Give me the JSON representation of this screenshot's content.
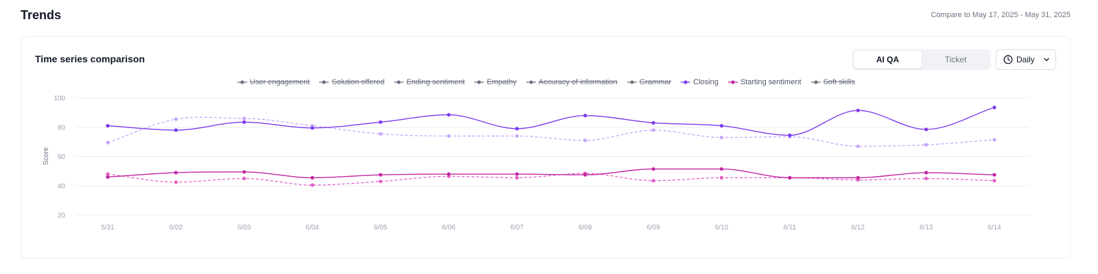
{
  "header": {
    "title": "Trends",
    "compare_text": "Compare to May 17, 2025 - May 31, 2025"
  },
  "card": {
    "title": "Time series comparison",
    "toggle": {
      "options": [
        "AI QA",
        "Ticket"
      ],
      "selected": "AI QA"
    },
    "period": {
      "label": "Daily",
      "icon": "clock-icon"
    }
  },
  "colors": {
    "closing": "#7c3aed",
    "closing_compare": "#c4a5fb",
    "starting": "#c026a3",
    "starting_compare": "#e45fc6",
    "disabled": "#6b7280",
    "grid": "#eceef1"
  },
  "chart_data": {
    "type": "line",
    "ylabel": "Score",
    "xlabel": "",
    "ylim": [
      20,
      100
    ],
    "yticks": [
      20,
      40,
      60,
      80,
      100
    ],
    "grid": true,
    "legend_placement": "top-center",
    "categories": [
      "5/31",
      "6/02",
      "6/03",
      "6/04",
      "6/05",
      "6/06",
      "6/07",
      "6/08",
      "6/09",
      "6/10",
      "6/11",
      "6/12",
      "6/13",
      "6/14"
    ],
    "legend": [
      {
        "name": "User engagement",
        "enabled": false
      },
      {
        "name": "Solution offered",
        "enabled": false
      },
      {
        "name": "Ending sentiment",
        "enabled": false
      },
      {
        "name": "Empathy",
        "enabled": false
      },
      {
        "name": "Accuracy of information",
        "enabled": false
      },
      {
        "name": "Grammar",
        "enabled": false
      },
      {
        "name": "Closing",
        "enabled": true
      },
      {
        "name": "Starting sentiment",
        "enabled": true
      },
      {
        "name": "Soft skills",
        "enabled": false
      }
    ],
    "series": [
      {
        "name": "Closing",
        "period": "current",
        "style": "solid",
        "color_key": "closing",
        "values": [
          81,
          78,
          83.5,
          79.5,
          83.5,
          88.5,
          79,
          88,
          83,
          81,
          74.5,
          91.5,
          78.5,
          93.5
        ]
      },
      {
        "name": "Closing",
        "period": "compare",
        "style": "dashed",
        "color_key": "closing_compare",
        "values": [
          69.5,
          85.5,
          86,
          81,
          75.5,
          74,
          74,
          71,
          78,
          73,
          73.5,
          67,
          68,
          71.5
        ]
      },
      {
        "name": "Starting sentiment",
        "period": "current",
        "style": "solid",
        "color_key": "starting",
        "values": [
          46,
          49,
          49.5,
          45.5,
          47.5,
          48,
          48,
          47.5,
          51.5,
          51.5,
          45.5,
          45.5,
          49,
          47.5
        ]
      },
      {
        "name": "Starting sentiment",
        "period": "compare",
        "style": "dashed",
        "color_key": "starting_compare",
        "values": [
          48,
          42.5,
          45,
          40.5,
          43,
          46.5,
          45.5,
          48.5,
          43.5,
          45.5,
          45.5,
          44,
          45,
          43.5
        ]
      }
    ]
  }
}
